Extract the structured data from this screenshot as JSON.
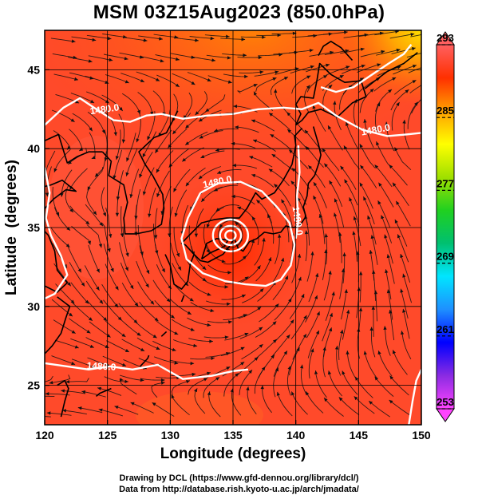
{
  "title": "MSM 03Z15Aug2023 (850.0hPa)",
  "chart_data": {
    "type": "heatmap",
    "title": "MSM 03Z15Aug2023 (850.0hPa)",
    "xlabel": "Longitude (degrees)",
    "ylabel": "Latitude  (degrees)",
    "xlim": [
      120,
      150
    ],
    "ylim": [
      22.5,
      47.5
    ],
    "x_ticks": [
      "120",
      "125",
      "130",
      "135",
      "140",
      "145",
      "150"
    ],
    "y_ticks": [
      "25",
      "30",
      "35",
      "40",
      "45"
    ],
    "grid": true,
    "colorbar": {
      "min": 253,
      "max": 293,
      "tick_labels": [
        "293",
        "285",
        "277",
        "269",
        "261",
        "253"
      ],
      "colors": [
        "#ff44ff",
        "#8a2be2",
        "#0000ff",
        "#1e90ff",
        "#00e5ff",
        "#00c070",
        "#20d020",
        "#a0e000",
        "#ffff00",
        "#ffa000",
        "#ff3000",
        "#ff6060"
      ]
    },
    "contour_labels": [
      "1480.0",
      "1480.0",
      "1480.0",
      "1480.0",
      "1480.0"
    ],
    "features": {
      "typhoon_center": {
        "lon": 134.8,
        "lat": 34.5
      }
    }
  },
  "credits": {
    "line1": "Drawing by DCL (https://www.gfd-dennou.org/library/dcl/)",
    "line2": "Data from http://database.rish.kyoto-u.ac.jp/arch/jmadata/"
  }
}
